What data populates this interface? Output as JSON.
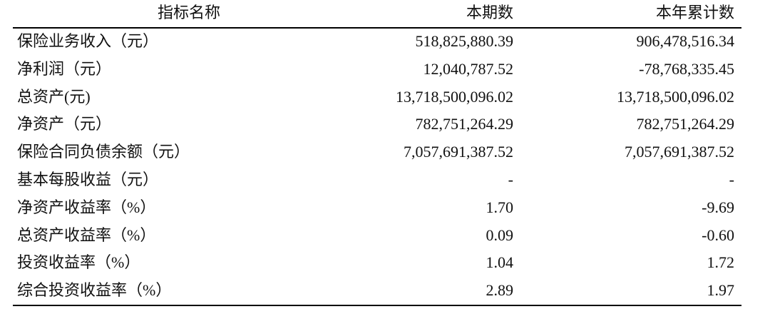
{
  "table": {
    "header": [
      "指标名称",
      "本期数",
      "本年累计数"
    ],
    "rows": [
      [
        "保险业务收入（元）",
        "518,825,880.39",
        "906,478,516.34"
      ],
      [
        "净利润（元）",
        "12,040,787.52",
        "-78,768,335.45"
      ],
      [
        "总资产(元)",
        "13,718,500,096.02",
        "13,718,500,096.02"
      ],
      [
        "净资产（元）",
        "782,751,264.29",
        "782,751,264.29"
      ],
      [
        "保险合同负债余额（元）",
        "7,057,691,387.52",
        "7,057,691,387.52"
      ],
      [
        "基本每股收益（元）",
        "-",
        "-"
      ],
      [
        "净资产收益率（%）",
        "1.70",
        "-9.69"
      ],
      [
        "总资产收益率（%）",
        "0.09",
        "-0.60"
      ],
      [
        "投资收益率（%）",
        "1.04",
        "1.72"
      ],
      [
        "综合投资收益率（%）",
        "2.89",
        "1.97"
      ]
    ]
  }
}
